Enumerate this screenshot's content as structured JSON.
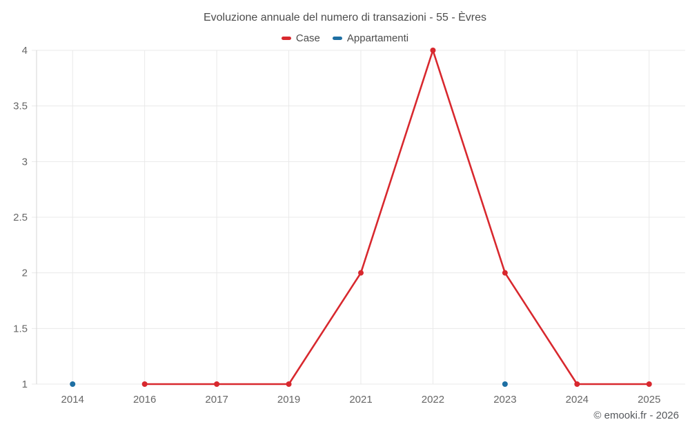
{
  "chart_data": {
    "type": "line",
    "title": "Evoluzione annuale del numero di transazioni - 55 - Èvres",
    "categories": [
      "2014",
      "2016",
      "2017",
      "2019",
      "2021",
      "2022",
      "2023",
      "2024",
      "2025"
    ],
    "series": [
      {
        "name": "Case",
        "color": "#d8282e",
        "values": [
          null,
          1,
          1,
          1,
          2,
          4,
          2,
          1,
          1
        ]
      },
      {
        "name": "Appartamenti",
        "color": "#1e6fa3",
        "values": [
          1,
          null,
          null,
          null,
          null,
          null,
          1,
          null,
          null
        ]
      }
    ],
    "ylim": [
      1,
      4
    ],
    "ytick_step": 0.5,
    "xlabel": "",
    "ylabel": "",
    "grid": true,
    "legend_position": "top",
    "marker_radius": 4,
    "line_width": 2.6
  },
  "footer": {
    "copyright": "© emooki.fr - 2026"
  },
  "colors": {
    "grid": "#e9e9e9",
    "axis": "#d6d6d6",
    "tick_text": "#666666",
    "title_text": "#4c4c4c"
  }
}
